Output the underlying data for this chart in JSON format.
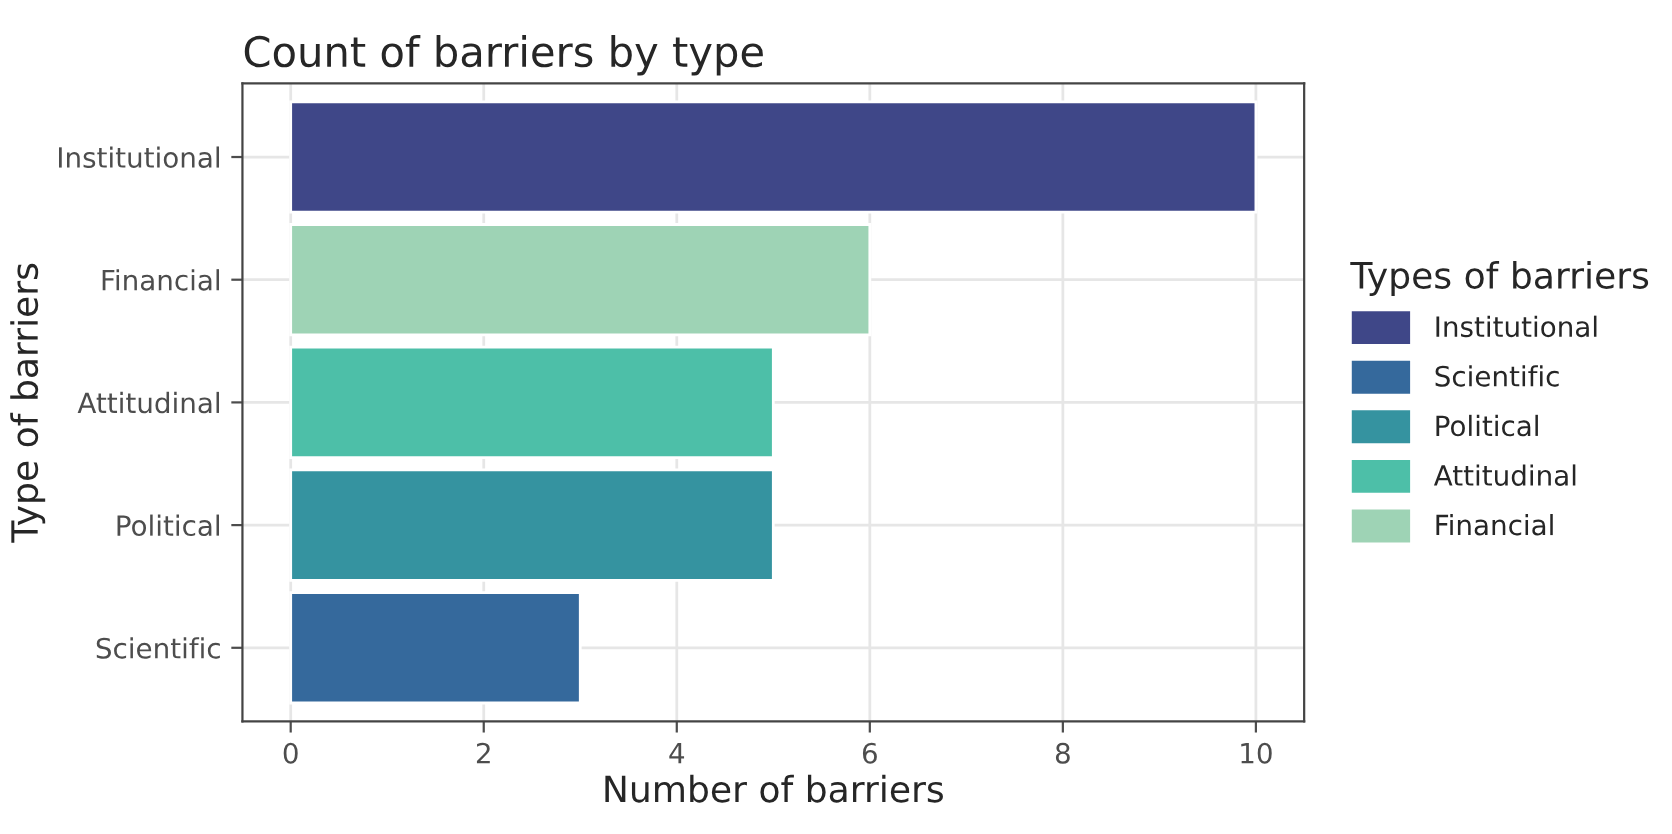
{
  "chart_data": {
    "type": "bar",
    "orientation": "horizontal",
    "title": "Count of barriers by type",
    "xlabel": "Number of barriers",
    "ylabel": "Type of barriers",
    "legend_title": "Types of barriers",
    "legend": "right",
    "categories": [
      "Institutional",
      "Financial",
      "Attitudinal",
      "Political",
      "Scientific"
    ],
    "series": [
      {
        "name": "Institutional",
        "color": "#3f4788",
        "values": [
          10,
          null,
          null,
          null,
          null
        ]
      },
      {
        "name": "Scientific",
        "color": "#35699c",
        "values": [
          null,
          null,
          null,
          null,
          3
        ]
      },
      {
        "name": "Political",
        "color": "#3593a0",
        "values": [
          null,
          null,
          null,
          5,
          null
        ]
      },
      {
        "name": "Attitudinal",
        "color": "#4dbfa8",
        "values": [
          null,
          null,
          5,
          null,
          null
        ]
      },
      {
        "name": "Financial",
        "color": "#9ed3b5",
        "values": [
          null,
          6,
          null,
          null,
          null
        ]
      }
    ],
    "xlim": [
      -0.5,
      10.5
    ],
    "xticks": [
      0,
      2,
      4,
      6,
      8,
      10
    ],
    "grid": true
  }
}
